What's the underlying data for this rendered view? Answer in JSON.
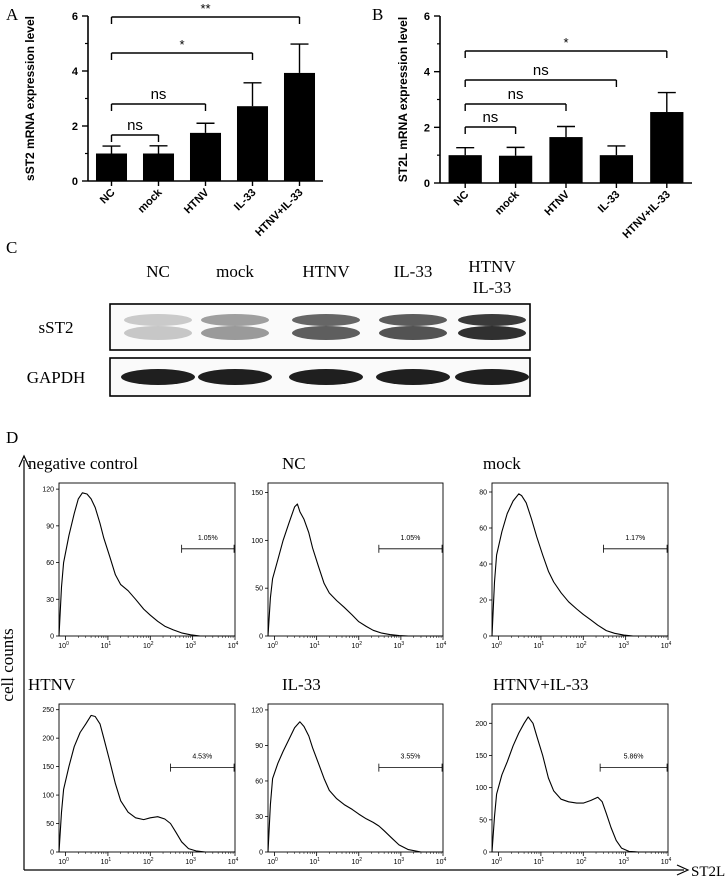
{
  "panels": {
    "A": "A",
    "B": "B",
    "C": "C",
    "D": "D"
  },
  "chart_data": [
    {
      "panel": "A",
      "type": "bar",
      "ylabel": "sST2 mRNA expression level",
      "categories": [
        "NC",
        "mock",
        "HTNV",
        "IL-33",
        "HTNV+IL-33"
      ],
      "values": [
        1.0,
        1.0,
        1.75,
        2.72,
        3.93
      ],
      "errors": [
        0.27,
        0.28,
        0.35,
        0.85,
        1.05
      ],
      "ylim": [
        0,
        6
      ],
      "yticks": [
        "0",
        "2",
        "4",
        "6"
      ],
      "significance": [
        {
          "from": 0,
          "to": 1,
          "label": "ns"
        },
        {
          "from": 0,
          "to": 2,
          "label": "ns"
        },
        {
          "from": 0,
          "to": 3,
          "label": "*"
        },
        {
          "from": 0,
          "to": 4,
          "label": "**"
        }
      ]
    },
    {
      "panel": "B",
      "type": "bar",
      "ylabel": "ST2L mRNA expression level",
      "categories": [
        "NC",
        "mock",
        "HTNV",
        "IL-33",
        "HTNV+IL-33"
      ],
      "values": [
        1.0,
        0.98,
        1.65,
        1.0,
        2.55
      ],
      "errors": [
        0.27,
        0.3,
        0.38,
        0.33,
        0.7
      ],
      "ylim": [
        0,
        6
      ],
      "yticks": [
        "0",
        "2",
        "4",
        "6"
      ],
      "significance": [
        {
          "from": 0,
          "to": 1,
          "label": "ns"
        },
        {
          "from": 0,
          "to": 2,
          "label": "ns"
        },
        {
          "from": 0,
          "to": 3,
          "label": "ns"
        },
        {
          "from": 0,
          "to": 4,
          "label": "*"
        }
      ]
    },
    {
      "panel": "C",
      "type": "western-blot",
      "lanes": [
        "NC",
        "mock",
        "HTNV",
        "IL-33",
        "HTNV IL-33"
      ],
      "lane_lines": [
        [
          "NC"
        ],
        [
          "mock"
        ],
        [
          "HTNV"
        ],
        [
          "IL-33"
        ],
        [
          "HTNV",
          "IL-33"
        ]
      ],
      "rows": [
        {
          "label": "sST2",
          "intensity": [
            0.18,
            0.4,
            0.7,
            0.75,
            0.92
          ]
        },
        {
          "label": "GAPDH",
          "intensity": [
            0.95,
            0.95,
            0.95,
            0.95,
            0.95
          ]
        }
      ]
    },
    {
      "panel": "D",
      "type": "histogram-grid",
      "ylabel": "cell counts",
      "xlabel": "ST2L",
      "xscale": "log",
      "xlim": [
        0.7,
        10000
      ],
      "xtick_exponents": [
        "0",
        "1",
        "2",
        "3",
        "4"
      ],
      "plots": [
        {
          "title": "negative control",
          "ylim": [
            0,
            125
          ],
          "yticks": [
            "0",
            "30",
            "60",
            "90",
            "120"
          ],
          "gate": [
            550,
            9500
          ],
          "percent": "1.05%",
          "curve": [
            [
              0.7,
              0
            ],
            [
              0.8,
              40
            ],
            [
              0.9,
              60
            ],
            [
              1.2,
              82
            ],
            [
              1.6,
              100
            ],
            [
              2.0,
              112
            ],
            [
              2.5,
              117
            ],
            [
              3.2,
              116
            ],
            [
              4.0,
              112
            ],
            [
              5.0,
              105
            ],
            [
              6.5,
              92
            ],
            [
              8,
              80
            ],
            [
              11,
              65
            ],
            [
              15,
              50
            ],
            [
              20,
              42
            ],
            [
              30,
              37
            ],
            [
              45,
              30
            ],
            [
              70,
              22
            ],
            [
              100,
              17
            ],
            [
              150,
              12
            ],
            [
              220,
              8
            ],
            [
              350,
              5
            ],
            [
              550,
              2.5
            ],
            [
              900,
              1
            ],
            [
              1500,
              0
            ],
            [
              10000,
              0
            ]
          ]
        },
        {
          "title": "NC",
          "ylim": [
            0,
            160
          ],
          "yticks": [
            "0",
            "50",
            "100",
            "150"
          ],
          "gate": [
            300,
            9500
          ],
          "percent": "1.05%",
          "curve": [
            [
              0.7,
              0
            ],
            [
              0.8,
              40
            ],
            [
              0.9,
              60
            ],
            [
              1.2,
              80
            ],
            [
              1.6,
              100
            ],
            [
              2.2,
              118
            ],
            [
              3.0,
              135
            ],
            [
              3.5,
              138
            ],
            [
              4.0,
              130
            ],
            [
              5.0,
              122
            ],
            [
              6.5,
              108
            ],
            [
              8,
              92
            ],
            [
              11,
              73
            ],
            [
              15,
              55
            ],
            [
              20,
              45
            ],
            [
              30,
              37
            ],
            [
              45,
              30
            ],
            [
              70,
              22
            ],
            [
              100,
              15
            ],
            [
              150,
              10
            ],
            [
              220,
              6
            ],
            [
              350,
              3
            ],
            [
              550,
              1.5
            ],
            [
              900,
              0.5
            ],
            [
              1500,
              0
            ],
            [
              10000,
              0
            ]
          ]
        },
        {
          "title": "mock",
          "ylim": [
            0,
            85
          ],
          "yticks": [
            "0",
            "20",
            "40",
            "60",
            "80"
          ],
          "gate": [
            300,
            9500
          ],
          "percent": "1.17%",
          "curve": [
            [
              0.7,
              0
            ],
            [
              0.8,
              30
            ],
            [
              0.9,
              45
            ],
            [
              1.2,
              58
            ],
            [
              1.6,
              68
            ],
            [
              2.2,
              75
            ],
            [
              3.0,
              79
            ],
            [
              3.5,
              78
            ],
            [
              4.5,
              74
            ],
            [
              6,
              65
            ],
            [
              8,
              55
            ],
            [
              11,
              45
            ],
            [
              15,
              36
            ],
            [
              20,
              30
            ],
            [
              30,
              24
            ],
            [
              45,
              19
            ],
            [
              70,
              15
            ],
            [
              100,
              12
            ],
            [
              150,
              9
            ],
            [
              220,
              6
            ],
            [
              350,
              3
            ],
            [
              550,
              1.5
            ],
            [
              900,
              0.5
            ],
            [
              1500,
              0
            ],
            [
              10000,
              0
            ]
          ]
        },
        {
          "title": "HTNV",
          "ylim": [
            0,
            260
          ],
          "yticks": [
            "0",
            "50",
            "100",
            "150",
            "200",
            "250"
          ],
          "gate": [
            300,
            9500
          ],
          "percent": "4.53%",
          "curve": [
            [
              0.7,
              0
            ],
            [
              0.8,
              70
            ],
            [
              0.9,
              110
            ],
            [
              1.2,
              150
            ],
            [
              1.6,
              185
            ],
            [
              2.2,
              210
            ],
            [
              3.0,
              225
            ],
            [
              4.0,
              240
            ],
            [
              5.0,
              238
            ],
            [
              6.5,
              225
            ],
            [
              8,
              200
            ],
            [
              11,
              160
            ],
            [
              15,
              120
            ],
            [
              20,
              90
            ],
            [
              30,
              70
            ],
            [
              45,
              60
            ],
            [
              70,
              57
            ],
            [
              100,
              60
            ],
            [
              150,
              62
            ],
            [
              220,
              58
            ],
            [
              300,
              50
            ],
            [
              400,
              35
            ],
            [
              550,
              18
            ],
            [
              800,
              6
            ],
            [
              1200,
              2
            ],
            [
              2000,
              0
            ],
            [
              10000,
              0
            ]
          ]
        },
        {
          "title": "IL-33",
          "ylim": [
            0,
            125
          ],
          "yticks": [
            "0",
            "30",
            "60",
            "90",
            "120"
          ],
          "gate": [
            300,
            9500
          ],
          "percent": "3.55%",
          "curve": [
            [
              0.7,
              0
            ],
            [
              0.8,
              40
            ],
            [
              0.9,
              62
            ],
            [
              1.2,
              75
            ],
            [
              1.6,
              85
            ],
            [
              2.2,
              95
            ],
            [
              3.0,
              105
            ],
            [
              4.0,
              110
            ],
            [
              5.0,
              106
            ],
            [
              6.5,
              98
            ],
            [
              8,
              88
            ],
            [
              11,
              75
            ],
            [
              15,
              62
            ],
            [
              20,
              52
            ],
            [
              30,
              45
            ],
            [
              45,
              40
            ],
            [
              70,
              36
            ],
            [
              100,
              32
            ],
            [
              150,
              28
            ],
            [
              220,
              25
            ],
            [
              300,
              22
            ],
            [
              400,
              18
            ],
            [
              600,
              12
            ],
            [
              900,
              6
            ],
            [
              1500,
              2
            ],
            [
              3000,
              0
            ],
            [
              10000,
              0
            ]
          ]
        },
        {
          "title": "HTNV+IL-33",
          "ylim": [
            0,
            230
          ],
          "yticks": [
            "0",
            "50",
            "100",
            "150",
            "200"
          ],
          "gate": [
            250,
            9500
          ],
          "percent": "5.86%",
          "curve": [
            [
              0.7,
              0
            ],
            [
              0.8,
              55
            ],
            [
              0.9,
              90
            ],
            [
              1.2,
              120
            ],
            [
              1.6,
              140
            ],
            [
              2.2,
              165
            ],
            [
              3.0,
              185
            ],
            [
              4.0,
              200
            ],
            [
              5.0,
              210
            ],
            [
              6.5,
              200
            ],
            [
              8,
              180
            ],
            [
              11,
              150
            ],
            [
              15,
              115
            ],
            [
              20,
              95
            ],
            [
              30,
              82
            ],
            [
              45,
              78
            ],
            [
              70,
              76
            ],
            [
              100,
              76
            ],
            [
              150,
              80
            ],
            [
              220,
              85
            ],
            [
              280,
              78
            ],
            [
              350,
              60
            ],
            [
              450,
              38
            ],
            [
              600,
              18
            ],
            [
              800,
              6
            ],
            [
              1200,
              1
            ],
            [
              2000,
              0
            ],
            [
              10000,
              0
            ]
          ]
        }
      ]
    }
  ]
}
